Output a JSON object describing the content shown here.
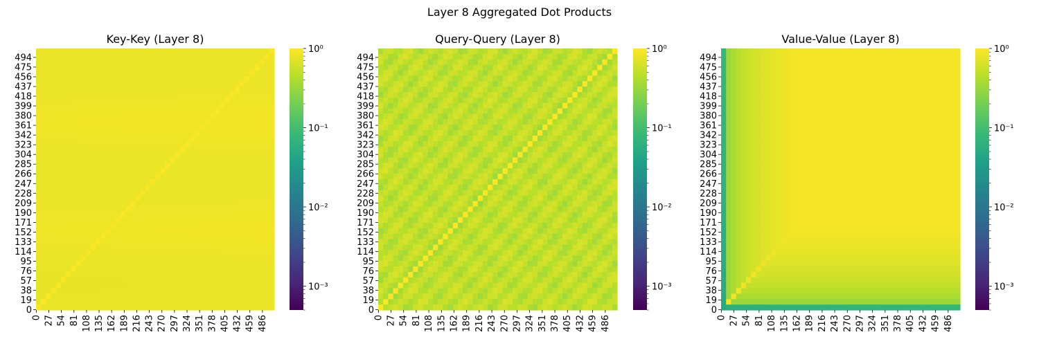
{
  "figure": {
    "title": "Layer 8 Aggregated Dot Products"
  },
  "chart_data": [
    {
      "type": "heatmap",
      "title": "Key-Key (Layer 8)",
      "xlabel": "",
      "ylabel": "",
      "x_tick_labels": [
        "0",
        "27",
        "54",
        "81",
        "108",
        "135",
        "162",
        "189",
        "216",
        "243",
        "270",
        "297",
        "324",
        "351",
        "378",
        "405",
        "432",
        "459",
        "486"
      ],
      "y_tick_labels": [
        "0",
        "19",
        "38",
        "57",
        "76",
        "95",
        "114",
        "133",
        "152",
        "171",
        "190",
        "209",
        "228",
        "247",
        "266",
        "285",
        "304",
        "323",
        "342",
        "361",
        "380",
        "399",
        "418",
        "437",
        "456",
        "475",
        "494"
      ],
      "matrix_size": 512,
      "colorscale": "viridis",
      "log_color_scale": true,
      "color_range": [
        0.0005,
        1.0
      ],
      "colorbar_tick_labels": [
        "10^-3",
        "10^-2",
        "10^-1",
        "10^0"
      ],
      "pattern": "near-uniform high similarity, slightly brighter along the diagonal",
      "typical_value": 0.8,
      "diagonal_value": 0.95
    },
    {
      "type": "heatmap",
      "title": "Query-Query (Layer 8)",
      "xlabel": "",
      "ylabel": "",
      "x_tick_labels": [
        "0",
        "27",
        "54",
        "81",
        "108",
        "135",
        "162",
        "189",
        "216",
        "243",
        "270",
        "297",
        "324",
        "351",
        "378",
        "405",
        "432",
        "459",
        "486"
      ],
      "y_tick_labels": [
        "0",
        "19",
        "38",
        "57",
        "76",
        "95",
        "114",
        "133",
        "152",
        "171",
        "190",
        "209",
        "228",
        "247",
        "266",
        "285",
        "304",
        "323",
        "342",
        "361",
        "380",
        "399",
        "418",
        "437",
        "456",
        "475",
        "494"
      ],
      "matrix_size": 512,
      "colorscale": "viridis",
      "log_color_scale": true,
      "color_range": [
        0.0005,
        1.0
      ],
      "colorbar_tick_labels": [
        "10^-3",
        "10^-2",
        "10^-1",
        "10^0"
      ],
      "pattern": "moderately high similarity with diagonal striping; strong main diagonal",
      "typical_value": 0.5,
      "diagonal_value": 1.0
    },
    {
      "type": "heatmap",
      "title": "Value-Value (Layer 8)",
      "xlabel": "",
      "ylabel": "",
      "x_tick_labels": [
        "0",
        "27",
        "54",
        "81",
        "108",
        "135",
        "162",
        "189",
        "216",
        "243",
        "270",
        "297",
        "324",
        "351",
        "378",
        "405",
        "432",
        "459",
        "486"
      ],
      "y_tick_labels": [
        "0",
        "19",
        "38",
        "57",
        "76",
        "95",
        "114",
        "133",
        "152",
        "171",
        "190",
        "209",
        "228",
        "247",
        "266",
        "285",
        "304",
        "323",
        "342",
        "361",
        "380",
        "399",
        "418",
        "437",
        "456",
        "475",
        "494"
      ],
      "matrix_size": 512,
      "colorscale": "viridis",
      "log_color_scale": true,
      "color_range": [
        0.0005,
        1.0
      ],
      "colorbar_tick_labels": [
        "10^-3",
        "10^-2",
        "10^-1",
        "10^0"
      ],
      "pattern": "low similarity for the first tokens (row/column 0 near 0.1), rising toward 1.0 for later token pairs",
      "first_token_value": 0.08,
      "late_token_value": 0.9
    }
  ]
}
